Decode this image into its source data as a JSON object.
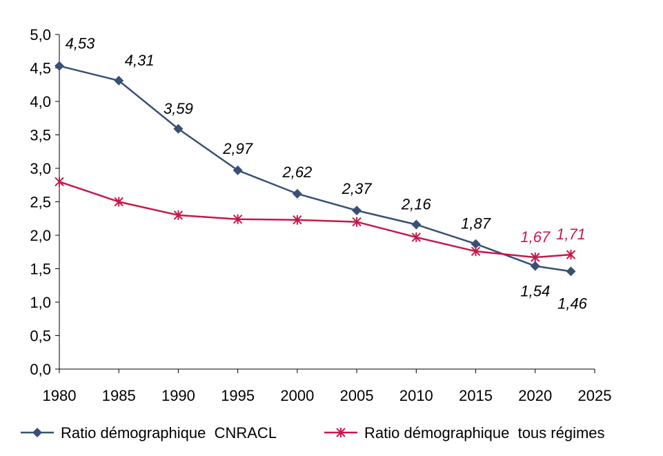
{
  "chart_data": {
    "type": "line",
    "xlim": [
      1980,
      2025
    ],
    "ylim": [
      0,
      5
    ],
    "x_ticks": [
      "1980",
      "1985",
      "1990",
      "1995",
      "2000",
      "2005",
      "2010",
      "2015",
      "2020",
      "2025"
    ],
    "y_ticks": [
      "0,0",
      "0,5",
      "1,0",
      "1,5",
      "2,0",
      "2,5",
      "3,0",
      "3,5",
      "4,0",
      "4,5",
      "5,0"
    ],
    "grid": false,
    "legend_position": "bottom",
    "series": [
      {
        "name": "Ratio démographique  CNRACL",
        "color": "#3A4F75",
        "marker": "diamond",
        "x": [
          1980,
          1985,
          1990,
          1995,
          2000,
          2005,
          2010,
          2015,
          2020,
          2023
        ],
        "y": [
          4.53,
          4.31,
          3.59,
          2.97,
          2.62,
          2.37,
          2.16,
          1.87,
          1.54,
          1.46
        ],
        "labels": [
          "4,53",
          "4,31",
          "3,59",
          "2,97",
          "2,62",
          "2,37",
          "2,16",
          "1,87",
          "1,54",
          "1,46"
        ]
      },
      {
        "name": "Ratio démographique  tous régimes",
        "color": "#C8174A",
        "marker": "asterisk",
        "x": [
          1980,
          1985,
          1990,
          1995,
          2000,
          2005,
          2010,
          2015,
          2020,
          2023
        ],
        "y": [
          2.8,
          2.5,
          2.3,
          2.24,
          2.23,
          2.2,
          1.97,
          1.76,
          1.67,
          1.71
        ],
        "labels": [
          "",
          "",
          "",
          "",
          "",
          "",
          "",
          "",
          "1,67",
          "1,71"
        ]
      }
    ]
  }
}
